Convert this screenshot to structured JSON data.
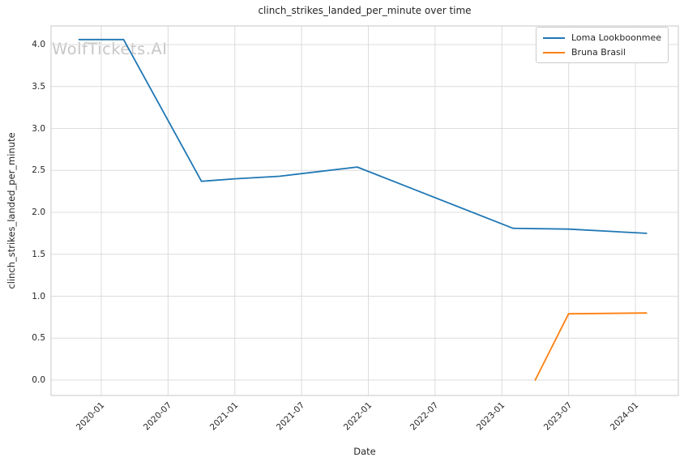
{
  "watermark": {
    "text": "WolfTickets.AI",
    "color": "#c7c7c7"
  },
  "chart_data": {
    "type": "line",
    "title": "clinch_strikes_landed_per_minute over time",
    "xlabel": "Date",
    "ylabel": "clinch_strikes_landed_per_minute",
    "x_ticks": [
      "2020-01",
      "2020-07",
      "2021-01",
      "2021-07",
      "2022-01",
      "2022-07",
      "2023-01",
      "2023-07",
      "2024-01"
    ],
    "y_ticks": [
      0.0,
      0.5,
      1.0,
      1.5,
      2.0,
      2.5,
      3.0,
      3.5,
      4.0
    ],
    "xlim": [
      "2019-08",
      "2024-05"
    ],
    "ylim": [
      -0.18,
      4.22
    ],
    "grid": true,
    "grid_color": "#dcdcdc",
    "axes_edge_color": "#d0d0d0",
    "legend_position": "upper right",
    "series": [
      {
        "name": "Loma Lookboonmee",
        "color": "#1f77b4",
        "points": [
          [
            "2019-11",
            4.06
          ],
          [
            "2020-03",
            4.06
          ],
          [
            "2020-10",
            2.37
          ],
          [
            "2021-01",
            2.4
          ],
          [
            "2021-05",
            2.43
          ],
          [
            "2021-12",
            2.54
          ],
          [
            "2023-02",
            1.81
          ],
          [
            "2023-07",
            1.8
          ],
          [
            "2024-02",
            1.75
          ]
        ]
      },
      {
        "name": "Bruna Brasil",
        "color": "#ff7f0e",
        "points": [
          [
            "2023-04",
            0.0
          ],
          [
            "2023-07",
            0.79
          ],
          [
            "2024-02",
            0.8
          ]
        ]
      }
    ]
  }
}
